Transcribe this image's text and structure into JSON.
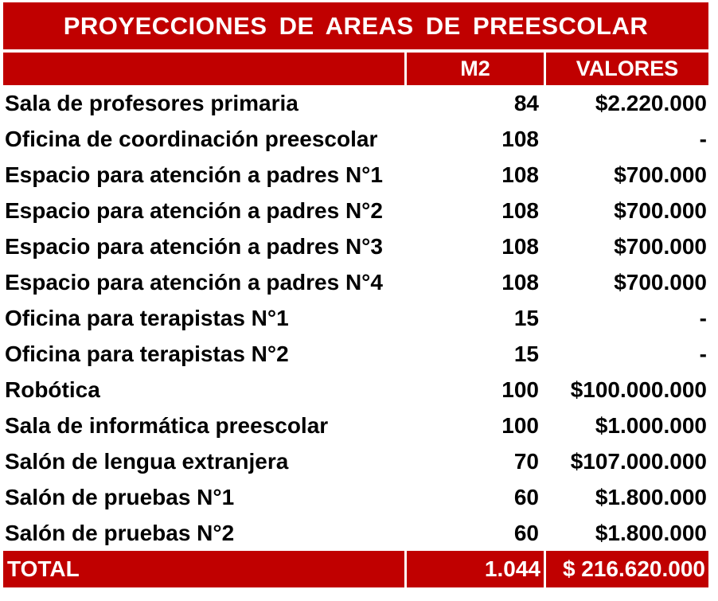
{
  "title": "PROYECCIONES DE AREAS DE PREESCOLAR",
  "header": {
    "area": "",
    "m2": "M2",
    "valores": "VALORES"
  },
  "rows": [
    {
      "name": "Sala de profesores primaria",
      "m2": "84",
      "valores": "$2.220.000"
    },
    {
      "name": "Oficina de coordinación preescolar",
      "m2": "108",
      "valores": "-"
    },
    {
      "name": "Espacio para atención a padres N°1",
      "m2": "108",
      "valores": "$700.000"
    },
    {
      "name": "Espacio para atención a padres N°2",
      "m2": "108",
      "valores": "$700.000"
    },
    {
      "name": "Espacio para atención a padres N°3",
      "m2": "108",
      "valores": "$700.000"
    },
    {
      "name": "Espacio para atención a padres N°4",
      "m2": "108",
      "valores": "$700.000"
    },
    {
      "name": "Oficina para terapistas N°1",
      "m2": "15",
      "valores": "-"
    },
    {
      "name": "Oficina para terapistas N°2",
      "m2": "15",
      "valores": "-"
    },
    {
      "name": "Robótica",
      "m2": "100",
      "valores": "$100.000.000"
    },
    {
      "name": "Sala de informática preescolar",
      "m2": "100",
      "valores": "$1.000.000"
    },
    {
      "name": "Salón de lengua extranjera",
      "m2": "70",
      "valores": "$107.000.000"
    },
    {
      "name": "Salón de pruebas N°1",
      "m2": "60",
      "valores": "$1.800.000"
    },
    {
      "name": "Salón de pruebas N°2",
      "m2": "60",
      "valores": "$1.800.000"
    }
  ],
  "total": {
    "label": "TOTAL",
    "m2": "1.044",
    "valores": "$ 216.620.000"
  },
  "colors": {
    "accent_red": "#C00000",
    "header_text": "#FFFFFF",
    "body_text": "#000000",
    "background": "#FFFFFF"
  },
  "chart_data": {
    "type": "table",
    "title": "PROYECCIONES DE AREAS DE PREESCOLAR",
    "columns": [
      "",
      "M2",
      "VALORES"
    ],
    "rows": [
      [
        "Sala de profesores primaria",
        84,
        "$2.220.000"
      ],
      [
        "Oficina de coordinación preescolar",
        108,
        "-"
      ],
      [
        "Espacio para atención a padres N°1",
        108,
        "$700.000"
      ],
      [
        "Espacio para atención a padres N°2",
        108,
        "$700.000"
      ],
      [
        "Espacio para atención a padres N°3",
        108,
        "$700.000"
      ],
      [
        "Espacio para atención a padres N°4",
        108,
        "$700.000"
      ],
      [
        "Oficina para terapistas N°1",
        15,
        "-"
      ],
      [
        "Oficina para terapistas N°2",
        15,
        "-"
      ],
      [
        "Robótica",
        100,
        "$100.000.000"
      ],
      [
        "Sala de informática preescolar",
        100,
        "$1.000.000"
      ],
      [
        "Salón de lengua extranjera",
        70,
        "$107.000.000"
      ],
      [
        "Salón de pruebas N°1",
        60,
        "$1.800.000"
      ],
      [
        "Salón de pruebas N°2",
        60,
        "$1.800.000"
      ]
    ],
    "total_row": [
      "TOTAL",
      "1.044",
      "$ 216.620.000"
    ],
    "layout": {
      "title_position": "top-merged-cell",
      "value_alignment": "right",
      "label_alignment": "left"
    }
  }
}
